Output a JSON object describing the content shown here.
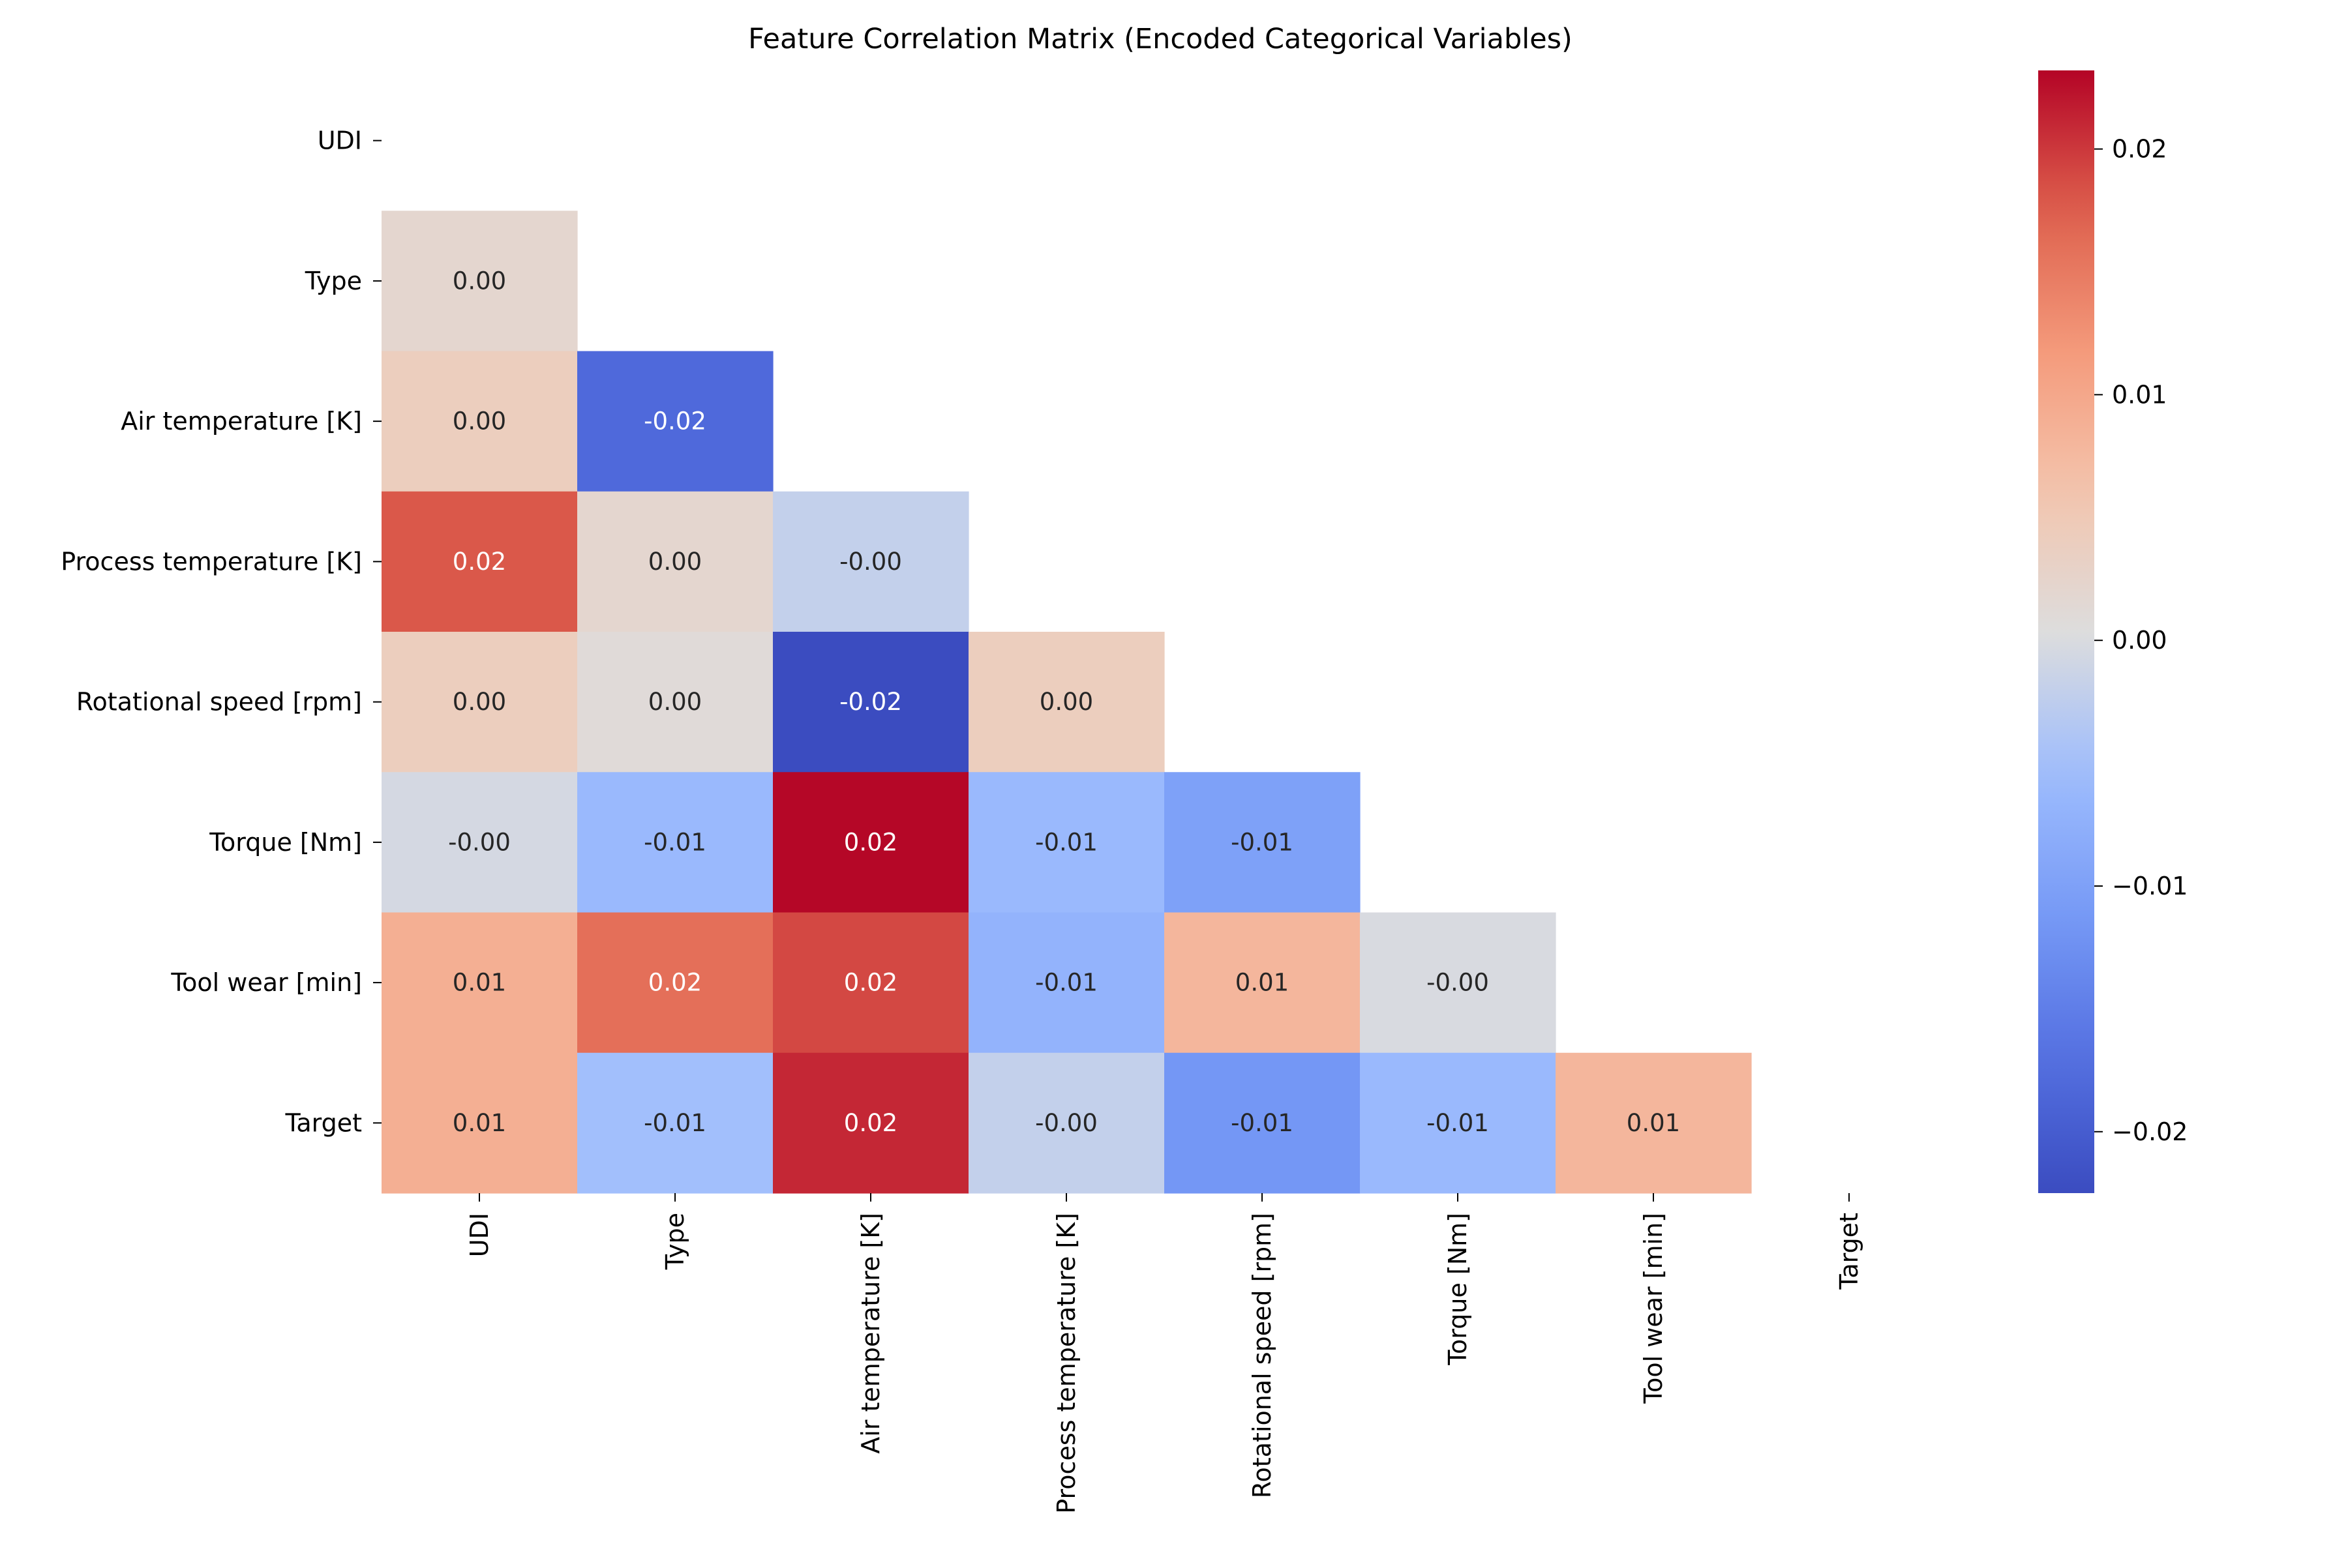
{
  "chart_data": {
    "type": "heatmap",
    "title": "Feature Correlation Matrix (Encoded Categorical Variables)",
    "mask": "upper-triangle-including-diagonal",
    "colormap": "coolwarm",
    "labels": [
      "UDI",
      "Type",
      "Air temperature [K]",
      "Process temperature [K]",
      "Rotational speed [rpm]",
      "Torque [Nm]",
      "Tool wear [min]",
      "Target"
    ],
    "cells": [
      {
        "row": 1,
        "col": 0,
        "value": 0.002,
        "label": "0.00"
      },
      {
        "row": 2,
        "col": 0,
        "value": 0.004,
        "label": "0.00"
      },
      {
        "row": 2,
        "col": 1,
        "value": -0.018,
        "label": "-0.02"
      },
      {
        "row": 3,
        "col": 0,
        "value": 0.018,
        "label": "0.02"
      },
      {
        "row": 3,
        "col": 1,
        "value": 0.002,
        "label": "0.00"
      },
      {
        "row": 3,
        "col": 2,
        "value": -0.002,
        "label": "-0.00"
      },
      {
        "row": 4,
        "col": 0,
        "value": 0.004,
        "label": "0.00"
      },
      {
        "row": 4,
        "col": 1,
        "value": 0.001,
        "label": "0.00"
      },
      {
        "row": 4,
        "col": 2,
        "value": -0.0225,
        "label": "-0.02"
      },
      {
        "row": 4,
        "col": 3,
        "value": 0.004,
        "label": "0.00"
      },
      {
        "row": 5,
        "col": 0,
        "value": -0.0005,
        "label": "-0.00"
      },
      {
        "row": 5,
        "col": 1,
        "value": -0.006,
        "label": "-0.01"
      },
      {
        "row": 5,
        "col": 2,
        "value": 0.023,
        "label": "0.02"
      },
      {
        "row": 5,
        "col": 3,
        "value": -0.006,
        "label": "-0.01"
      },
      {
        "row": 5,
        "col": 4,
        "value": -0.01,
        "label": "-0.01"
      },
      {
        "row": 6,
        "col": 0,
        "value": 0.009,
        "label": "0.01"
      },
      {
        "row": 6,
        "col": 1,
        "value": 0.016,
        "label": "0.02"
      },
      {
        "row": 6,
        "col": 2,
        "value": 0.019,
        "label": "0.02"
      },
      {
        "row": 6,
        "col": 3,
        "value": -0.007,
        "label": "-0.01"
      },
      {
        "row": 6,
        "col": 4,
        "value": 0.008,
        "label": "0.01"
      },
      {
        "row": 6,
        "col": 5,
        "value": -0.0001,
        "label": "-0.00"
      },
      {
        "row": 7,
        "col": 0,
        "value": 0.009,
        "label": "0.01"
      },
      {
        "row": 7,
        "col": 1,
        "value": -0.005,
        "label": "-0.01"
      },
      {
        "row": 7,
        "col": 2,
        "value": 0.021,
        "label": "0.02"
      },
      {
        "row": 7,
        "col": 3,
        "value": -0.002,
        "label": "-0.00"
      },
      {
        "row": 7,
        "col": 4,
        "value": -0.0115,
        "label": "-0.01"
      },
      {
        "row": 7,
        "col": 5,
        "value": -0.006,
        "label": "-0.01"
      },
      {
        "row": 7,
        "col": 6,
        "value": 0.008,
        "label": "0.01"
      }
    ],
    "colorbar": {
      "range": [
        -0.0225,
        0.0232
      ],
      "ticks": [
        -0.02,
        -0.01,
        0.0,
        0.01,
        0.02
      ],
      "tick_labels": [
        "−0.02",
        "−0.01",
        "0.00",
        "0.01",
        "0.02"
      ]
    }
  }
}
